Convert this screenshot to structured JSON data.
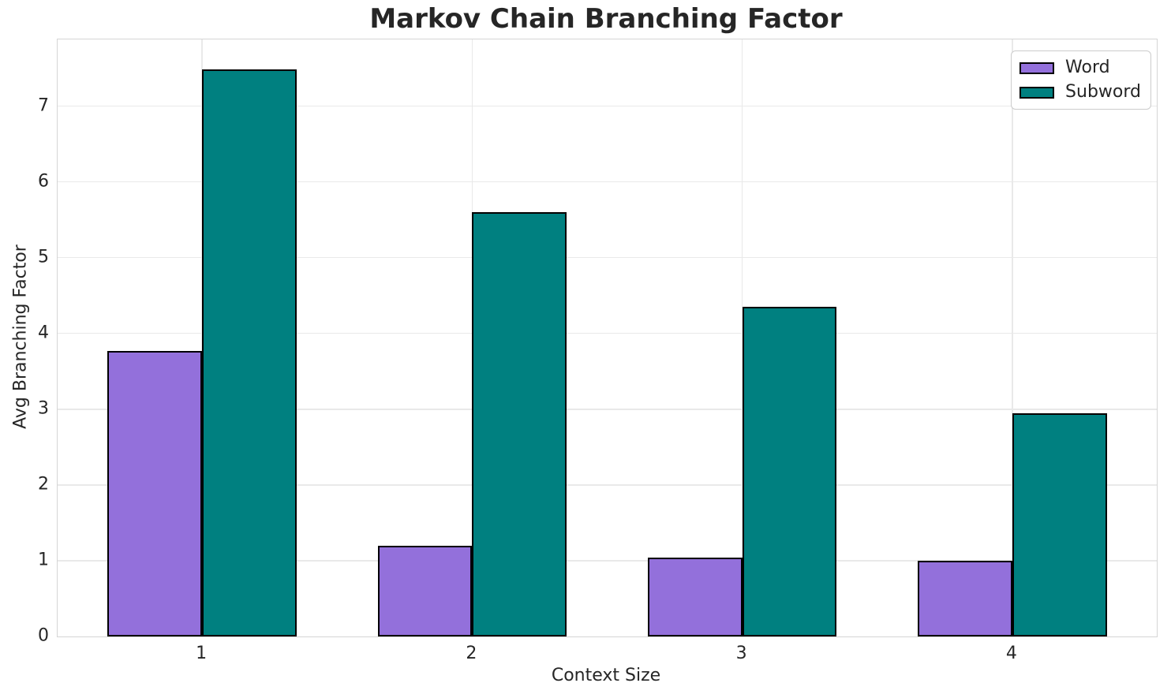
{
  "chart_data": {
    "type": "bar",
    "title": "Markov Chain Branching Factor",
    "xlabel": "Context Size",
    "ylabel": "Avg Branching Factor",
    "categories": [
      "1",
      "2",
      "3",
      "4"
    ],
    "series": [
      {
        "name": "Word",
        "color": "#9370db",
        "values": [
          3.77,
          1.2,
          1.04,
          1.0
        ]
      },
      {
        "name": "Subword",
        "color": "#008080",
        "values": [
          7.48,
          5.6,
          4.35,
          2.95
        ]
      }
    ],
    "ylim": [
      0,
      7.88
    ],
    "yticks": [
      0,
      1,
      2,
      3,
      4,
      5,
      6,
      7
    ],
    "grid": true,
    "bar_edge_color": "#000000",
    "bar_width_fraction": 0.35,
    "legend_position": "upper right",
    "colors": {
      "text": "#262626",
      "grid": "#e9e9e9",
      "frame": "#d5d5d5",
      "background": "#ffffff"
    }
  }
}
